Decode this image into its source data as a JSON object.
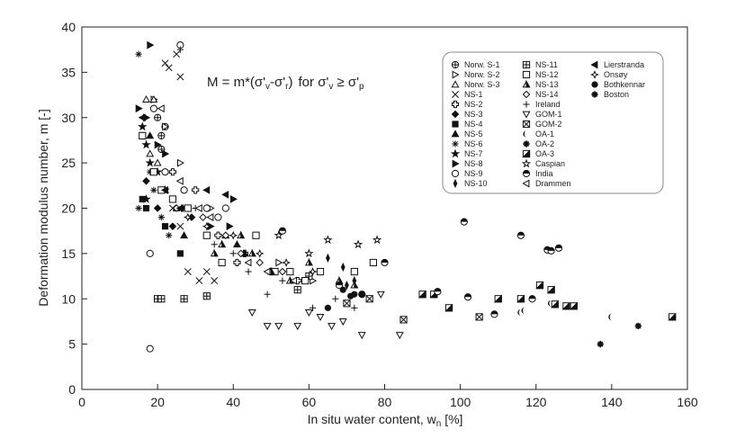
{
  "chart_data": {
    "type": "scatter",
    "equation": {
      "main": "M = m*(σ'v-σ'r)",
      "condition": "for σ'v ≥ σ'p"
    },
    "xlabel": "In situ water content, wn [%]",
    "ylabel": "Deformation modulus number, m [-]",
    "xlim": [
      0,
      160
    ],
    "ylim": [
      0,
      40
    ],
    "xticks": [
      0,
      20,
      40,
      60,
      80,
      100,
      120,
      140,
      160
    ],
    "yticks": [
      0,
      5,
      10,
      15,
      20,
      25,
      30,
      35,
      40
    ],
    "grid": false,
    "legend_position": "top-right",
    "series": [
      {
        "name": "Norw. S-1",
        "marker": "circleplus",
        "points": [
          [
            20,
            30
          ],
          [
            21,
            28
          ],
          [
            22,
            29
          ],
          [
            21,
            26.5
          ]
        ]
      },
      {
        "name": "Norw. S-2",
        "marker": "triright",
        "points": [
          [
            19,
            32
          ],
          [
            22,
            29
          ],
          [
            26,
            25
          ],
          [
            34,
            20
          ],
          [
            52,
            14
          ],
          [
            61,
            12
          ]
        ]
      },
      {
        "name": "Norw. S-3",
        "marker": "triup",
        "points": [
          [
            17,
            32
          ],
          [
            19,
            32
          ],
          [
            20,
            25
          ],
          [
            16,
            28
          ],
          [
            18,
            26
          ]
        ]
      },
      {
        "name": "NS-1",
        "marker": "x",
        "points": [
          [
            23,
            35.5
          ],
          [
            26,
            34.5
          ],
          [
            22,
            36
          ],
          [
            25,
            37
          ],
          [
            28,
            13
          ],
          [
            31,
            12
          ],
          [
            33,
            13
          ],
          [
            35,
            12
          ],
          [
            24,
            20
          ],
          [
            26,
            18
          ]
        ]
      },
      {
        "name": "NS-2",
        "marker": "crossbox",
        "points": [
          [
            24,
            24
          ],
          [
            30,
            22
          ],
          [
            36,
            17
          ],
          [
            41,
            14
          ],
          [
            43,
            15
          ],
          [
            50,
            13
          ],
          [
            57,
            12
          ]
        ]
      },
      {
        "name": "NS-3",
        "marker": "diamondf",
        "points": [
          [
            17,
            23
          ],
          [
            20,
            20
          ],
          [
            24,
            18
          ],
          [
            29,
            19
          ],
          [
            33,
            17
          ]
        ]
      },
      {
        "name": "NS-4",
        "marker": "squaref",
        "points": [
          [
            16,
            21
          ],
          [
            17,
            20
          ],
          [
            22,
            18
          ],
          [
            26,
            15
          ]
        ]
      },
      {
        "name": "NS-5",
        "marker": "triupf",
        "points": [
          [
            18,
            28
          ],
          [
            22,
            22
          ],
          [
            25,
            20
          ],
          [
            27,
            17
          ],
          [
            38,
            17
          ],
          [
            41,
            16
          ],
          [
            43,
            15
          ]
        ]
      },
      {
        "name": "NS-6",
        "marker": "asterisk",
        "points": [
          [
            15,
            37
          ],
          [
            18,
            24
          ],
          [
            19,
            22
          ],
          [
            21,
            19
          ],
          [
            23,
            17
          ],
          [
            15,
            20
          ]
        ]
      },
      {
        "name": "NS-7",
        "marker": "star",
        "points": [
          [
            16,
            29
          ],
          [
            17,
            27
          ],
          [
            18,
            25
          ],
          [
            20,
            24
          ],
          [
            22,
            22
          ],
          [
            17,
            21
          ]
        ]
      },
      {
        "name": "NS-8",
        "marker": "trirightf",
        "points": [
          [
            15,
            31
          ],
          [
            17,
            30
          ],
          [
            18,
            38
          ],
          [
            20,
            27
          ],
          [
            22,
            26
          ],
          [
            27,
            20
          ],
          [
            34,
            18
          ],
          [
            40,
            21
          ],
          [
            39,
            18
          ]
        ]
      },
      {
        "name": "NS-9",
        "marker": "circle",
        "points": [
          [
            18,
            4.5
          ],
          [
            18,
            15
          ],
          [
            26,
            38
          ],
          [
            19,
            31
          ],
          [
            22,
            24
          ],
          [
            27,
            22
          ],
          [
            36,
            19
          ],
          [
            38,
            20
          ],
          [
            33,
            20
          ]
        ]
      },
      {
        "name": "NS-10",
        "marker": "diamondthin",
        "points": [
          [
            65,
            14.5
          ],
          [
            69,
            13.5
          ],
          [
            72,
            12
          ],
          [
            70,
            11.5
          ]
        ]
      },
      {
        "name": "NS-11",
        "marker": "squareplus",
        "points": [
          [
            20,
            10
          ],
          [
            21,
            10
          ],
          [
            27,
            10
          ],
          [
            33,
            10.3
          ],
          [
            57,
            11
          ],
          [
            60,
            12.5
          ]
        ]
      },
      {
        "name": "NS-12",
        "marker": "square",
        "points": [
          [
            16,
            28
          ],
          [
            19,
            24
          ],
          [
            21,
            22
          ],
          [
            24,
            21
          ],
          [
            28,
            20
          ],
          [
            33,
            17
          ],
          [
            37,
            14
          ],
          [
            46,
            17
          ],
          [
            51,
            13
          ],
          [
            55,
            13
          ],
          [
            59,
            12
          ],
          [
            63,
            13
          ],
          [
            72,
            13
          ],
          [
            77,
            14
          ]
        ]
      },
      {
        "name": "NS-13",
        "marker": "trihalf",
        "points": [
          [
            35,
            15
          ],
          [
            37,
            16
          ],
          [
            42,
            17
          ],
          [
            45,
            15
          ],
          [
            50,
            13
          ],
          [
            55,
            12
          ],
          [
            60,
            14
          ],
          [
            68,
            12
          ],
          [
            72,
            11.5
          ]
        ]
      },
      {
        "name": "NS-14",
        "marker": "diamond",
        "points": [
          [
            25,
            20
          ],
          [
            32,
            19
          ],
          [
            38,
            17
          ],
          [
            42,
            15
          ],
          [
            47,
            14
          ],
          [
            53,
            13
          ]
        ]
      },
      {
        "name": "Ireland",
        "marker": "plus",
        "points": [
          [
            26,
            37.5
          ],
          [
            30,
            20
          ],
          [
            35,
            16
          ],
          [
            40,
            15
          ],
          [
            44,
            13
          ],
          [
            49,
            10.5
          ],
          [
            53,
            12
          ],
          [
            61,
            9
          ],
          [
            67,
            10
          ],
          [
            72,
            9
          ]
        ]
      },
      {
        "name": "GOM-1",
        "marker": "tridown",
        "points": [
          [
            45,
            8.5
          ],
          [
            49,
            7
          ],
          [
            52,
            7
          ],
          [
            57,
            7
          ],
          [
            60,
            8.5
          ],
          [
            63,
            8
          ],
          [
            66,
            7
          ],
          [
            69,
            7.5
          ],
          [
            74,
            6
          ],
          [
            79,
            10.5
          ],
          [
            84,
            6
          ]
        ]
      },
      {
        "name": "GOM-2",
        "marker": "squarex",
        "points": [
          [
            70,
            9.5
          ],
          [
            76,
            10
          ],
          [
            85,
            7.7
          ],
          [
            105,
            8
          ]
        ]
      },
      {
        "name": "OA-1",
        "marker": "crescent",
        "points": [
          [
            116,
            8.5
          ],
          [
            117,
            8.7
          ],
          [
            124,
            9.5
          ],
          [
            140,
            8
          ]
        ]
      },
      {
        "name": "OA-2",
        "marker": "asteriskb",
        "points": [
          [
            147,
            7
          ]
        ]
      },
      {
        "name": "OA-3",
        "marker": "halfsq",
        "points": [
          [
            90,
            10.5
          ],
          [
            93,
            10.5
          ],
          [
            97,
            9
          ],
          [
            110,
            10
          ],
          [
            116,
            10
          ],
          [
            121,
            11.5
          ],
          [
            124,
            11
          ],
          [
            125,
            9.4
          ],
          [
            128,
            9.2
          ],
          [
            130,
            9.2
          ],
          [
            156,
            8
          ]
        ]
      },
      {
        "name": "Caspian",
        "marker": "star5",
        "points": [
          [
            52,
            17
          ],
          [
            60,
            15
          ],
          [
            65,
            16.5
          ],
          [
            73,
            16
          ],
          [
            78,
            16.5
          ]
        ]
      },
      {
        "name": "India",
        "marker": "halfcircle",
        "points": [
          [
            53,
            17.5
          ],
          [
            68,
            11.5
          ],
          [
            74,
            10.5
          ],
          [
            80,
            14
          ],
          [
            94,
            10.8
          ],
          [
            101,
            18.5
          ],
          [
            102,
            10.2
          ],
          [
            109,
            8.3
          ],
          [
            116,
            17
          ],
          [
            119,
            10
          ],
          [
            123,
            15.4
          ],
          [
            124,
            15.3
          ],
          [
            126,
            15.6
          ]
        ]
      },
      {
        "name": "Drammen",
        "marker": "trileft",
        "points": [
          [
            21,
            31
          ],
          [
            26,
            23
          ],
          [
            31,
            20
          ],
          [
            34,
            19
          ],
          [
            44,
            14
          ],
          [
            49,
            13
          ],
          [
            56,
            12
          ]
        ]
      },
      {
        "name": "Lierstranda",
        "marker": "trileftf",
        "points": [
          [
            16,
            30
          ],
          [
            22,
            22
          ],
          [
            26,
            20
          ],
          [
            33,
            22
          ],
          [
            38,
            21.5
          ]
        ]
      },
      {
        "name": "Onsøy",
        "marker": "diamond4",
        "points": [
          [
            28,
            19
          ],
          [
            33,
            18
          ],
          [
            40,
            17
          ],
          [
            47,
            15
          ],
          [
            54,
            14
          ],
          [
            61,
            13
          ]
        ]
      },
      {
        "name": "Bothkennar",
        "marker": "circlef",
        "points": [
          [
            65,
            9
          ],
          [
            69,
            11
          ],
          [
            71,
            10.3
          ],
          [
            72,
            10.5
          ],
          [
            74,
            10.5
          ]
        ]
      },
      {
        "name": "Boston",
        "marker": "asteriskb",
        "points": [
          [
            137,
            5
          ]
        ]
      }
    ]
  }
}
